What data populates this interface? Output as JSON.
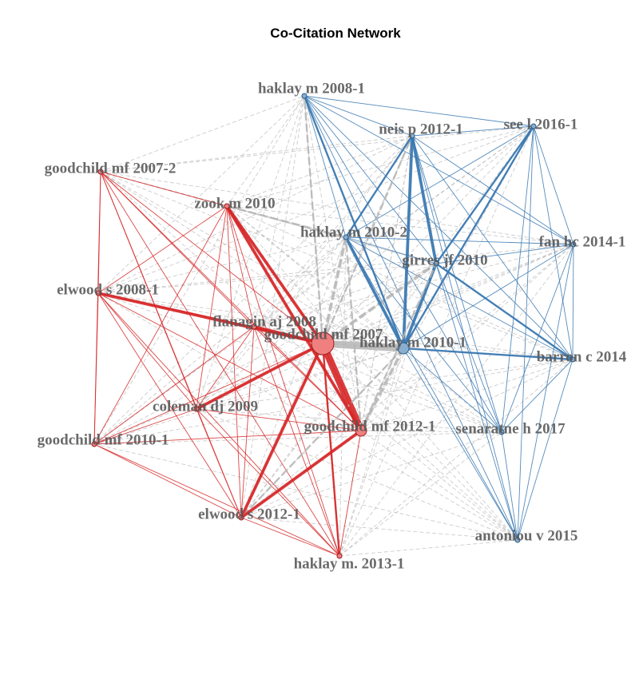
{
  "title": "Co-Citation Network",
  "colors": {
    "cluster1": "#d62728",
    "cluster1_fill": "#f07f7f",
    "cluster2": "#3a78b0",
    "cluster2_fill": "#8aaed0",
    "between": "#bbbbbb",
    "label": "#555555"
  },
  "nodes": [
    {
      "id": "goodchild_mf_2007",
      "label": "goodchild mf 2007",
      "cluster": 1,
      "size": "large"
    },
    {
      "id": "flanagin_aj_2008",
      "label": "flanagin aj 2008",
      "cluster": 1,
      "size": "small"
    },
    {
      "id": "goodchild_mf_2012_1",
      "label": "goodchild mf 2012-1",
      "cluster": 1,
      "size": "medium"
    },
    {
      "id": "zook_m_2010",
      "label": "zook m 2010",
      "cluster": 1,
      "size": "small"
    },
    {
      "id": "goodchild_mf_2007_2",
      "label": "goodchild mf 2007-2",
      "cluster": 1,
      "size": "small"
    },
    {
      "id": "elwood_s_2008_1",
      "label": "elwood s 2008-1",
      "cluster": 1,
      "size": "small"
    },
    {
      "id": "coleman_dj_2009",
      "label": "coleman dj 2009",
      "cluster": 1,
      "size": "small"
    },
    {
      "id": "goodchild_mf_2010_1",
      "label": "goodchild mf 2010-1",
      "cluster": 1,
      "size": "small"
    },
    {
      "id": "elwood_s_2012_1",
      "label": "elwood s 2012-1",
      "cluster": 1,
      "size": "small"
    },
    {
      "id": "haklay_m_2013_1",
      "label": "haklay m. 2013-1",
      "cluster": 1,
      "size": "small"
    },
    {
      "id": "haklay_m_2010_1",
      "label": "haklay m 2010-1",
      "cluster": 2,
      "size": "medium"
    },
    {
      "id": "haklay_m_2008_1",
      "label": "haklay m 2008-1",
      "cluster": 2,
      "size": "small"
    },
    {
      "id": "neis_p_2012_1",
      "label": "neis p 2012-1",
      "cluster": 2,
      "size": "small"
    },
    {
      "id": "see_l_2016_1",
      "label": "see l 2016-1",
      "cluster": 2,
      "size": "small"
    },
    {
      "id": "haklay_m_2010_2",
      "label": "haklay m 2010-2",
      "cluster": 2,
      "size": "small"
    },
    {
      "id": "girres_jf_2010",
      "label": "girres jf 2010",
      "cluster": 2,
      "size": "small"
    },
    {
      "id": "fan_hc_2014_1",
      "label": "fan hc 2014-1",
      "cluster": 2,
      "size": "small"
    },
    {
      "id": "barron_c_2014",
      "label": "barron c 2014",
      "cluster": 2,
      "size": "small"
    },
    {
      "id": "senaratne_h_2017",
      "label": "senaratne h 2017",
      "cluster": 2,
      "size": "small"
    },
    {
      "id": "antoniou_v_2015",
      "label": "antoniou v 2015",
      "cluster": 2,
      "size": "small"
    }
  ],
  "edges": [
    {
      "from": "goodchild_mf_2007",
      "to": "haklay_m_2010_1",
      "weight": "very-high"
    },
    {
      "from": "goodchild_mf_2007",
      "to": "goodchild_mf_2012_1",
      "weight": "very-high"
    },
    {
      "from": "goodchild_mf_2007",
      "to": "elwood_s_2008_1",
      "weight": "high"
    },
    {
      "from": "goodchild_mf_2007",
      "to": "zook_m_2010",
      "weight": "high"
    },
    {
      "from": "goodchild_mf_2007",
      "to": "coleman_dj_2009",
      "weight": "high"
    },
    {
      "from": "goodchild_mf_2007",
      "to": "elwood_s_2012_1",
      "weight": "high"
    },
    {
      "from": "goodchild_mf_2007",
      "to": "flanagin_aj_2008",
      "weight": "high"
    },
    {
      "from": "goodchild_mf_2007",
      "to": "haklay_m_2010_2",
      "weight": "high"
    },
    {
      "from": "goodchild_mf_2007",
      "to": "girres_jf_2010",
      "weight": "high"
    },
    {
      "from": "goodchild_mf_2007",
      "to": "haklay_m_2008_1",
      "weight": "medium"
    },
    {
      "from": "goodchild_mf_2007",
      "to": "neis_p_2012_1",
      "weight": "medium"
    },
    {
      "from": "goodchild_mf_2007",
      "to": "haklay_m_2013_1",
      "weight": "medium"
    },
    {
      "from": "haklay_m_2010_1",
      "to": "neis_p_2012_1",
      "weight": "high"
    },
    {
      "from": "haklay_m_2010_1",
      "to": "haklay_m_2010_2",
      "weight": "high"
    },
    {
      "from": "haklay_m_2010_1",
      "to": "girres_jf_2010",
      "weight": "high"
    },
    {
      "from": "haklay_m_2010_1",
      "to": "barron_c_2014",
      "weight": "medium"
    },
    {
      "from": "haklay_m_2010_1",
      "to": "haklay_m_2008_1",
      "weight": "medium"
    },
    {
      "from": "haklay_m_2010_1",
      "to": "goodchild_mf_2012_1",
      "weight": "high"
    },
    {
      "from": "haklay_m_2010_1",
      "to": "elwood_s_2012_1",
      "weight": "medium"
    },
    {
      "from": "haklay_m_2010_1",
      "to": "see_l_2016_1",
      "weight": "medium"
    },
    {
      "from": "goodchild_mf_2012_1",
      "to": "zook_m_2010",
      "weight": "high"
    },
    {
      "from": "goodchild_mf_2012_1",
      "to": "elwood_s_2012_1",
      "weight": "high"
    },
    {
      "from": "goodchild_mf_2012_1",
      "to": "haklay_m_2010_2",
      "weight": "medium"
    },
    {
      "from": "goodchild_mf_2012_1",
      "to": "girres_jf_2010",
      "weight": "medium"
    },
    {
      "from": "neis_p_2012_1",
      "to": "girres_jf_2010",
      "weight": "high"
    },
    {
      "from": "girres_jf_2010",
      "to": "barron_c_2014",
      "weight": "medium"
    },
    {
      "from": "girres_jf_2010",
      "to": "see_l_2016_1",
      "weight": "medium"
    },
    {
      "from": "haklay_m_2010_2",
      "to": "neis_p_2012_1",
      "weight": "medium"
    },
    {
      "from": "zook_m_2010",
      "to": "haklay_m_2010_2",
      "weight": "medium"
    }
  ]
}
